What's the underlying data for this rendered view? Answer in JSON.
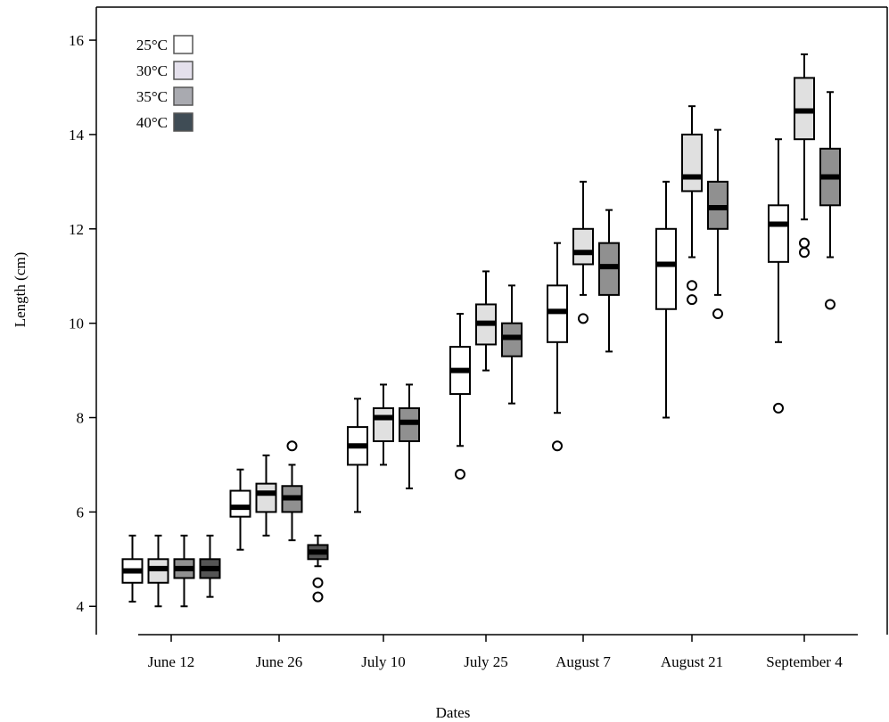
{
  "chart_data": {
    "type": "boxplot",
    "xlabel": "Dates",
    "ylabel": "Length (cm)",
    "ylim": [
      3.4,
      16.7
    ],
    "yticks": [
      4,
      6,
      8,
      10,
      12,
      14,
      16
    ],
    "categories": [
      "June 12",
      "June 26",
      "July 10",
      "July 25",
      "August 7",
      "August 21",
      "September 4"
    ],
    "legend": {
      "placement": "top-left",
      "entries": [
        {
          "label": "25°C",
          "color": "#ffffff"
        },
        {
          "label": "30°C",
          "color": "#e4e0ec"
        },
        {
          "label": "35°C",
          "color": "#a9aab0"
        },
        {
          "label": "40°C",
          "color": "#3f4c55"
        }
      ]
    },
    "plot_fill_colors": {
      "25°C": "#ffffff",
      "30°C": "#e0e0e0",
      "35°C": "#909090",
      "40°C": "#555555"
    },
    "boxes": [
      {
        "category": "June 12",
        "series": "25°C",
        "whisker_low": 4.1,
        "q1": 4.5,
        "median": 4.75,
        "q3": 5.0,
        "whisker_high": 5.5,
        "outliers": []
      },
      {
        "category": "June 12",
        "series": "30°C",
        "whisker_low": 4.0,
        "q1": 4.5,
        "median": 4.8,
        "q3": 5.0,
        "whisker_high": 5.5,
        "outliers": []
      },
      {
        "category": "June 12",
        "series": "35°C",
        "whisker_low": 4.0,
        "q1": 4.6,
        "median": 4.8,
        "q3": 5.0,
        "whisker_high": 5.5,
        "outliers": []
      },
      {
        "category": "June 12",
        "series": "40°C",
        "whisker_low": 4.2,
        "q1": 4.6,
        "median": 4.8,
        "q3": 5.0,
        "whisker_high": 5.5,
        "outliers": []
      },
      {
        "category": "June 26",
        "series": "25°C",
        "whisker_low": 5.2,
        "q1": 5.9,
        "median": 6.1,
        "q3": 6.45,
        "whisker_high": 6.9,
        "outliers": []
      },
      {
        "category": "June 26",
        "series": "30°C",
        "whisker_low": 5.5,
        "q1": 6.0,
        "median": 6.4,
        "q3": 6.6,
        "whisker_high": 7.2,
        "outliers": []
      },
      {
        "category": "June 26",
        "series": "35°C",
        "whisker_low": 5.4,
        "q1": 6.0,
        "median": 6.3,
        "q3": 6.55,
        "whisker_high": 7.0,
        "outliers": [
          7.4
        ]
      },
      {
        "category": "June 26",
        "series": "40°C",
        "whisker_low": 4.85,
        "q1": 5.0,
        "median": 5.15,
        "q3": 5.3,
        "whisker_high": 5.5,
        "outliers": [
          4.5,
          4.2
        ]
      },
      {
        "category": "July 10",
        "series": "25°C",
        "whisker_low": 6.0,
        "q1": 7.0,
        "median": 7.4,
        "q3": 7.8,
        "whisker_high": 8.4,
        "outliers": []
      },
      {
        "category": "July 10",
        "series": "30°C",
        "whisker_low": 7.0,
        "q1": 7.5,
        "median": 8.0,
        "q3": 8.2,
        "whisker_high": 8.7,
        "outliers": []
      },
      {
        "category": "July 10",
        "series": "35°C",
        "whisker_low": 6.5,
        "q1": 7.5,
        "median": 7.9,
        "q3": 8.2,
        "whisker_high": 8.7,
        "outliers": []
      },
      {
        "category": "July 25",
        "series": "25°C",
        "whisker_low": 7.4,
        "q1": 8.5,
        "median": 9.0,
        "q3": 9.5,
        "whisker_high": 10.2,
        "outliers": [
          6.8
        ]
      },
      {
        "category": "July 25",
        "series": "30°C",
        "whisker_low": 9.0,
        "q1": 9.55,
        "median": 10.0,
        "q3": 10.4,
        "whisker_high": 11.1,
        "outliers": []
      },
      {
        "category": "July 25",
        "series": "35°C",
        "whisker_low": 8.3,
        "q1": 9.3,
        "median": 9.7,
        "q3": 10.0,
        "whisker_high": 10.8,
        "outliers": []
      },
      {
        "category": "August 7",
        "series": "25°C",
        "whisker_low": 8.1,
        "q1": 9.6,
        "median": 10.25,
        "q3": 10.8,
        "whisker_high": 11.7,
        "outliers": [
          7.4
        ]
      },
      {
        "category": "August 7",
        "series": "30°C",
        "whisker_low": 10.6,
        "q1": 11.25,
        "median": 11.5,
        "q3": 12.0,
        "whisker_high": 13.0,
        "outliers": [
          10.1
        ]
      },
      {
        "category": "August 7",
        "series": "35°C",
        "whisker_low": 9.4,
        "q1": 10.6,
        "median": 11.2,
        "q3": 11.7,
        "whisker_high": 12.4,
        "outliers": []
      },
      {
        "category": "August 21",
        "series": "25°C",
        "whisker_low": 8.0,
        "q1": 10.3,
        "median": 11.25,
        "q3": 12.0,
        "whisker_high": 13.0,
        "outliers": []
      },
      {
        "category": "August 21",
        "series": "30°C",
        "whisker_low": 11.4,
        "q1": 12.8,
        "median": 13.1,
        "q3": 14.0,
        "whisker_high": 14.6,
        "outliers": [
          10.8,
          10.5
        ]
      },
      {
        "category": "August 21",
        "series": "35°C",
        "whisker_low": 10.6,
        "q1": 12.0,
        "median": 12.45,
        "q3": 13.0,
        "whisker_high": 14.1,
        "outliers": [
          10.2
        ]
      },
      {
        "category": "September 4",
        "series": "25°C",
        "whisker_low": 9.6,
        "q1": 11.3,
        "median": 12.1,
        "q3": 12.5,
        "whisker_high": 13.9,
        "outliers": [
          8.2
        ]
      },
      {
        "category": "September 4",
        "series": "30°C",
        "whisker_low": 12.2,
        "q1": 13.9,
        "median": 14.5,
        "q3": 15.2,
        "whisker_high": 15.7,
        "outliers": [
          11.7,
          11.5
        ]
      },
      {
        "category": "September 4",
        "series": "35°C",
        "whisker_low": 11.4,
        "q1": 12.5,
        "median": 13.1,
        "q3": 13.7,
        "whisker_high": 14.9,
        "outliers": [
          10.4
        ]
      }
    ]
  }
}
